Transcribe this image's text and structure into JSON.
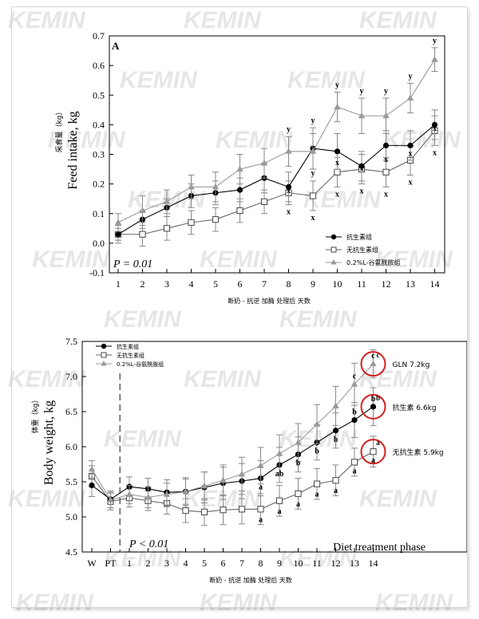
{
  "watermark": {
    "text": "KEMIN",
    "color": "#dcdcdc"
  },
  "colors": {
    "series": "#000000",
    "gln": "#9a9a9a",
    "circle": "#d02020"
  },
  "chart_data": [
    {
      "type": "line",
      "panel": "A",
      "ylabel_en": "Feed intake, kg",
      "ylabel_cn": "采食量（kg）",
      "xlabel_cn": "断奶 - 抗逆 加酶 处理后 天数",
      "pvalue": "P = 0.01",
      "ylim": [
        -0.1,
        0.7
      ],
      "yticks": [
        "-0.1",
        "0.0",
        "0.1",
        "0.2",
        "0.3",
        "0.4",
        "0.5",
        "0.6",
        "0.7"
      ],
      "x": [
        "1",
        "2",
        "3",
        "4",
        "5",
        "6",
        "7",
        "8",
        "9",
        "10",
        "11",
        "12",
        "13",
        "14"
      ],
      "series": [
        {
          "name": "抗生素组",
          "marker": "filled-circle",
          "values": [
            0.03,
            0.08,
            0.12,
            0.16,
            0.17,
            0.18,
            0.22,
            0.19,
            0.32,
            0.31,
            0.26,
            0.33,
            0.33,
            0.4
          ],
          "errors": [
            0.02,
            0.03,
            0.03,
            0.04,
            0.04,
            0.04,
            0.05,
            0.05,
            0.07,
            0.06,
            0.05,
            0.05,
            0.05,
            0.05
          ]
        },
        {
          "name": "无抗生素组",
          "marker": "open-square",
          "values": [
            0.03,
            0.03,
            0.05,
            0.07,
            0.08,
            0.11,
            0.14,
            0.17,
            0.16,
            0.24,
            0.25,
            0.24,
            0.28,
            0.38
          ],
          "errors": [
            0.03,
            0.04,
            0.04,
            0.04,
            0.04,
            0.04,
            0.04,
            0.04,
            0.05,
            0.05,
            0.05,
            0.05,
            0.05,
            0.05
          ]
        },
        {
          "name": "0.2%L-谷氨酰胺组",
          "marker": "filled-triangle",
          "values": [
            0.07,
            0.11,
            0.14,
            0.19,
            0.19,
            0.25,
            0.27,
            0.31,
            0.31,
            0.46,
            0.43,
            0.43,
            0.49,
            0.62
          ],
          "errors": [
            0.03,
            0.05,
            0.04,
            0.04,
            0.05,
            0.05,
            0.05,
            0.05,
            0.06,
            0.05,
            0.06,
            0.06,
            0.05,
            0.04
          ]
        }
      ],
      "annotations": [
        {
          "x": "8",
          "labels": [
            "y",
            "x",
            "x"
          ]
        },
        {
          "x": "9",
          "labels": [
            "y",
            "x",
            "y"
          ]
        },
        {
          "x": "10",
          "labels": [
            "y",
            "x",
            "x"
          ]
        },
        {
          "x": "11",
          "labels": [
            "y",
            "x",
            "x"
          ]
        },
        {
          "x": "12",
          "labels": [
            "y",
            "x",
            "x"
          ]
        },
        {
          "x": "13",
          "labels": [
            "y",
            "x",
            "x"
          ]
        },
        {
          "x": "14",
          "labels": [
            "y",
            "x",
            "x"
          ]
        }
      ]
    },
    {
      "type": "line",
      "ylabel_en": "Body weight, kg",
      "ylabel_cn": "体重（kg）",
      "xlabel_cn": "断奶 - 抗逆 加酶 处理后 天数",
      "pvalue": "P < 0.01",
      "phase_label": "Diet treatment phase",
      "ylim": [
        4.5,
        7.5
      ],
      "yticks": [
        "4.5",
        "5.0",
        "5.5",
        "6.0",
        "6.5",
        "7.0",
        "7.5"
      ],
      "x": [
        "W",
        "PT",
        "1",
        "2",
        "3",
        "4",
        "5",
        "6",
        "7",
        "8",
        "9",
        "10",
        "11",
        "12",
        "13",
        "14"
      ],
      "series": [
        {
          "name": "抗生素组",
          "marker": "filled-circle",
          "values": [
            5.45,
            5.25,
            5.43,
            5.4,
            5.35,
            5.36,
            5.42,
            5.48,
            5.51,
            5.55,
            5.74,
            5.89,
            6.06,
            6.23,
            6.38,
            6.57
          ],
          "errors": [
            0.16,
            0.12,
            0.14,
            0.15,
            0.18,
            0.2,
            0.22,
            0.23,
            0.25,
            0.25,
            0.25,
            0.25,
            0.25,
            0.25,
            0.25,
            0.27
          ]
        },
        {
          "name": "无抗生素组",
          "marker": "open-square",
          "values": [
            5.58,
            5.22,
            5.27,
            5.23,
            5.19,
            5.09,
            5.07,
            5.1,
            5.11,
            5.11,
            5.23,
            5.33,
            5.47,
            5.52,
            5.78,
            5.93
          ],
          "errors": [
            0.15,
            0.12,
            0.13,
            0.14,
            0.15,
            0.17,
            0.19,
            0.21,
            0.21,
            0.22,
            0.22,
            0.22,
            0.22,
            0.22,
            0.2,
            0.22
          ]
        },
        {
          "name": "0.2%L-谷氨酰胺组",
          "marker": "filled-triangle",
          "values": [
            5.68,
            5.24,
            5.32,
            5.28,
            5.32,
            5.36,
            5.44,
            5.52,
            5.61,
            5.73,
            5.9,
            6.06,
            6.32,
            6.58,
            6.89,
            7.18
          ],
          "errors": [
            0.12,
            0.11,
            0.13,
            0.15,
            0.16,
            0.18,
            0.2,
            0.22,
            0.24,
            0.26,
            0.27,
            0.27,
            0.28,
            0.28,
            0.3,
            0.2
          ]
        }
      ],
      "annotations": [
        {
          "x": "8",
          "labels": [
            "a",
            "a"
          ]
        },
        {
          "x": "9",
          "labels": [
            "ab",
            "a"
          ]
        },
        {
          "x": "10",
          "labels": [
            "b",
            "a"
          ]
        },
        {
          "x": "11",
          "labels": [
            "b",
            "a"
          ]
        },
        {
          "x": "12",
          "labels": [
            "b",
            "a"
          ]
        },
        {
          "x": "13",
          "labels": [
            "c",
            "b",
            "a"
          ]
        },
        {
          "x": "14",
          "labels": [
            "c",
            "b",
            "a"
          ]
        }
      ],
      "callouts": [
        {
          "series": 2,
          "label": "c",
          "text": "GLN 7.2kg"
        },
        {
          "series": 0,
          "label": "b",
          "text": "抗生素 6.6kg"
        },
        {
          "series": 1,
          "label": "a",
          "text": "无抗生素 5.9kg"
        }
      ]
    }
  ]
}
